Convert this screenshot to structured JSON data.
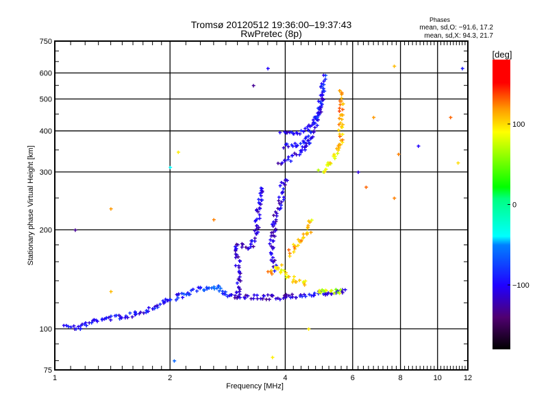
{
  "header": {
    "title_line1": "Tromsø 20120512 19:36:00–19:37:43",
    "title_line2": "RwPretec (8p)",
    "stats_title": "Phases",
    "stats_o": "mean, sd,O: −91.6, 17.2",
    "stats_x": "mean, sd,X:  94.3, 21.7"
  },
  "colorbar": {
    "label": "[deg]",
    "range": [
      -180,
      180
    ],
    "ticks": [
      100,
      0,
      -100
    ],
    "tick_labels": [
      "100",
      "0",
      "−100"
    ]
  },
  "chart_data": {
    "type": "scatter",
    "title": "Tromsø 20120512 19:36:00–19:37:43 RwPretec (8p)",
    "xlabel": "Frequency [MHz]",
    "ylabel": "Stationary phase Virtual Height [km]",
    "xscale": "log",
    "yscale": "log",
    "xlim": [
      1,
      12
    ],
    "ylim": [
      75,
      750
    ],
    "grid": true,
    "xticks": [
      1,
      2,
      4,
      6,
      8,
      10,
      12
    ],
    "xtick_labels": [
      "1",
      "2",
      "4",
      "6",
      "8",
      "10",
      "12"
    ],
    "xgrid": [
      2,
      4,
      6,
      8,
      10
    ],
    "yticks": [
      75,
      100,
      200,
      300,
      400,
      500,
      600,
      750
    ],
    "ytick_labels": [
      "75",
      "100",
      "200",
      "300",
      "400",
      "500",
      "600",
      "750"
    ],
    "ygrid": [
      100,
      200,
      300,
      400,
      500,
      600
    ],
    "color_variable": "phase [deg]",
    "traces": [
      {
        "name": "O-mode low trace",
        "points": [
          [
            1.07,
            104,
            -95
          ],
          [
            1.13,
            100,
            -105
          ],
          [
            1.3,
            107,
            -100
          ],
          [
            1.43,
            108.5,
            -95
          ],
          [
            1.57,
            110,
            -95
          ],
          [
            1.78,
            115.5,
            -100
          ],
          [
            1.99,
            123,
            -95
          ],
          [
            2.21,
            128,
            -85
          ],
          [
            2.45,
            133,
            -80
          ],
          [
            2.69,
            135,
            -70
          ],
          [
            2.8,
            125,
            -95
          ],
          [
            3.08,
            125,
            -115
          ],
          [
            3.94,
            125,
            -115
          ],
          [
            4.41,
            127,
            -100
          ],
          [
            5.81,
            130,
            -110
          ]
        ]
      },
      {
        "name": "O-mode rising trace 1",
        "points": [
          [
            3.01,
            125,
            -110
          ],
          [
            3.01,
            156,
            -110
          ],
          [
            2.96,
            180,
            -115
          ],
          [
            3.27,
            178,
            -110
          ],
          [
            3.35,
            199,
            -105
          ],
          [
            3.4,
            226,
            -110
          ],
          [
            3.44,
            261,
            -105
          ],
          [
            3.54,
            274,
            -110
          ]
        ]
      },
      {
        "name": "O-mode rising trace 2",
        "points": [
          [
            3.74,
            152,
            -105
          ],
          [
            3.69,
            180,
            -110
          ],
          [
            3.74,
            215,
            -110
          ],
          [
            3.9,
            245,
            -105
          ],
          [
            3.94,
            278,
            -105
          ],
          [
            4.06,
            287,
            -100
          ]
        ]
      },
      {
        "name": "O-mode upper trace",
        "points": [
          [
            3.85,
            321,
            -110
          ],
          [
            4.06,
            327,
            -105
          ],
          [
            4.41,
            348,
            -100
          ],
          [
            4.65,
            383,
            -95
          ],
          [
            4.79,
            422,
            -100
          ],
          [
            4.93,
            471,
            -100
          ],
          [
            4.99,
            518,
            -90
          ],
          [
            5.03,
            562,
            -95
          ],
          [
            5.05,
            599,
            -80
          ]
        ]
      },
      {
        "name": "O-mode upper trace 2",
        "points": [
          [
            3.9,
            396,
            -110
          ],
          [
            4.28,
            393,
            -100
          ],
          [
            4.54,
            402,
            -95
          ],
          [
            4.79,
            436,
            -90
          ],
          [
            4.95,
            487,
            -100
          ],
          [
            5.03,
            536,
            -100
          ]
        ]
      },
      {
        "name": "O-mode upper trace 3",
        "points": [
          [
            3.94,
            360,
            -100
          ],
          [
            4.46,
            365,
            -95
          ],
          [
            4.65,
            389,
            -90
          ]
        ]
      },
      {
        "name": "X-mode lower trace",
        "points": [
          [
            3.63,
            147,
            110
          ],
          [
            3.85,
            156,
            100
          ],
          [
            3.94,
            147,
            90
          ],
          [
            4.23,
            141,
            95
          ],
          [
            4.6,
            138,
            100
          ]
        ]
      },
      {
        "name": "X-mode rising trace",
        "points": [
          [
            4.06,
            169,
            110
          ],
          [
            4.35,
            184,
            120
          ],
          [
            4.6,
            196,
            110
          ],
          [
            4.65,
            219,
            100
          ]
        ]
      },
      {
        "name": "X-mode upper trace",
        "points": [
          [
            4.93,
            301,
            80
          ],
          [
            5.2,
            316,
            90
          ],
          [
            5.48,
            348,
            100
          ],
          [
            5.58,
            383,
            110
          ],
          [
            5.6,
            428,
            115
          ],
          [
            5.58,
            471,
            120
          ],
          [
            5.58,
            511,
            115
          ],
          [
            5.6,
            544,
            110
          ]
        ]
      },
      {
        "name": "X-mode bottom trace",
        "points": [
          [
            4.85,
            131,
            80
          ],
          [
            5.58,
            130,
            60
          ]
        ]
      }
    ],
    "stray_points": [
      [
        1.13,
        200,
        -130
      ],
      [
        1.4,
        232,
        120
      ],
      [
        1.4,
        130,
        110
      ],
      [
        2.05,
        80,
        -60
      ],
      [
        2.1,
        345,
        95
      ],
      [
        2.6,
        215,
        125
      ],
      [
        3.3,
        550,
        -130
      ],
      [
        3.6,
        620,
        -100
      ],
      [
        3.7,
        82,
        95
      ],
      [
        4.6,
        100,
        95
      ],
      [
        6.8,
        440,
        120
      ],
      [
        7.7,
        630,
        110
      ],
      [
        7.9,
        340,
        125
      ],
      [
        8.9,
        360,
        -100
      ],
      [
        10.8,
        440,
        130
      ],
      [
        11.3,
        320,
        100
      ],
      [
        11.6,
        620,
        -90
      ],
      [
        6.5,
        270,
        130
      ],
      [
        7.7,
        250,
        125
      ],
      [
        2.0,
        310,
        -40
      ],
      [
        6.2,
        300,
        -110
      ]
    ]
  }
}
